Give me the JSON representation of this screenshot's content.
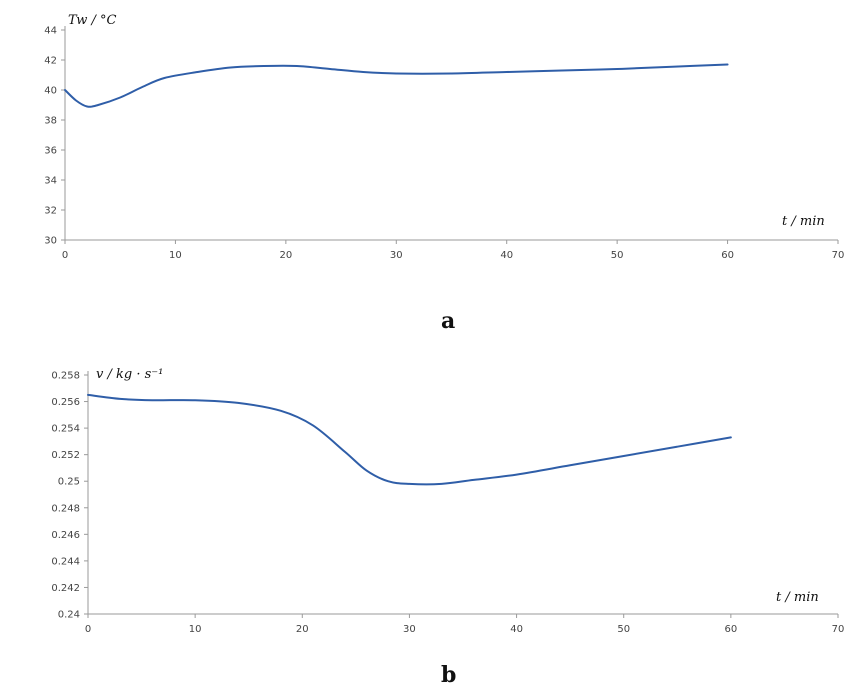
{
  "chart_data": [
    {
      "type": "line",
      "panel_label": "a",
      "xlabel": "t / min",
      "ylabel": "Tw / °C",
      "xlim": [
        0,
        70
      ],
      "ylim": [
        30,
        44
      ],
      "xticks": [
        0,
        10,
        20,
        30,
        40,
        50,
        60,
        70
      ],
      "yticks": [
        30,
        32,
        34,
        36,
        38,
        40,
        42,
        44
      ],
      "grid": false,
      "series_color": "#2f5ea8",
      "series": [
        {
          "x": [
            0,
            1,
            2,
            3,
            5,
            7,
            9,
            12,
            15,
            18,
            21,
            24,
            27,
            30,
            35,
            40,
            45,
            50,
            55,
            60
          ],
          "y": [
            40.0,
            39.3,
            38.9,
            39.0,
            39.5,
            40.2,
            40.8,
            41.2,
            41.5,
            41.6,
            41.6,
            41.4,
            41.2,
            41.1,
            41.1,
            41.2,
            41.3,
            41.4,
            41.55,
            41.7
          ]
        }
      ]
    },
    {
      "type": "line",
      "panel_label": "b",
      "xlabel": "t / min",
      "ylabel": "v / kg · s⁻¹",
      "xlim": [
        0,
        70
      ],
      "ylim": [
        0.24,
        0.258
      ],
      "xticks": [
        0,
        10,
        20,
        30,
        40,
        50,
        60,
        70
      ],
      "yticks": [
        0.24,
        0.242,
        0.244,
        0.246,
        0.248,
        0.25,
        0.252,
        0.254,
        0.256,
        0.258
      ],
      "ytick_labels": [
        "0.24",
        "0.242",
        "0.244",
        "0.246",
        "0.248",
        "0.25",
        "0.252",
        "0.254",
        "0.256",
        "0.258"
      ],
      "grid": false,
      "series_color": "#2f5ea8",
      "series": [
        {
          "x": [
            0,
            3,
            6,
            10,
            14,
            18,
            21,
            24,
            26,
            28,
            30,
            33,
            36,
            40,
            45,
            50,
            55,
            60
          ],
          "y": [
            0.2565,
            0.2562,
            0.2561,
            0.2561,
            0.2559,
            0.2553,
            0.2542,
            0.2522,
            0.2508,
            0.25,
            0.2498,
            0.2498,
            0.2501,
            0.2505,
            0.2512,
            0.2519,
            0.2526,
            0.2533
          ]
        }
      ]
    }
  ]
}
